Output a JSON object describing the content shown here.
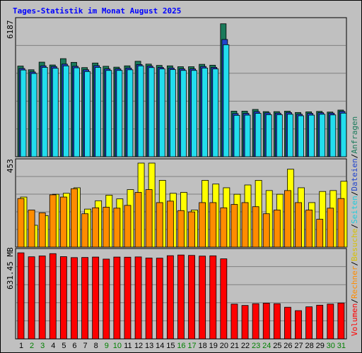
{
  "title": "Tages-Statistik im Monat August 2025",
  "colors": {
    "background": "#c0c0c0",
    "title": "#0000ff",
    "anfragen": "#1a7a5a",
    "dateien": "#2244cc",
    "seiten": "#22ddee",
    "besuche": "#ffff00",
    "rechner": "#ff8c00",
    "volumen": "#ff0000",
    "weekday": "#000000",
    "weekend": "#008000",
    "grid": "#808080"
  },
  "y_labels": {
    "top": "6187",
    "middle": "453",
    "bottom": "631.45 MB"
  },
  "legend_right": {
    "volumen": "Volumen",
    "rechner": "Rechner",
    "besuche": "Besuche",
    "seiten": "Seiten",
    "dateien": "Dateien",
    "anfragen": "Anfragen",
    "separator": "/"
  },
  "chart_data": [
    {
      "type": "bar",
      "panel": "top",
      "ylim": [
        0,
        6187
      ],
      "categories": [
        "1",
        "2",
        "3",
        "4",
        "5",
        "6",
        "7",
        "8",
        "9",
        "10",
        "11",
        "12",
        "13",
        "14",
        "15",
        "16",
        "17",
        "18",
        "19",
        "20",
        "21",
        "22",
        "23",
        "24",
        "25",
        "26",
        "27",
        "28",
        "29",
        "30",
        "31"
      ],
      "weekend": [
        2,
        3,
        9,
        10,
        16,
        17,
        23,
        24,
        30,
        31
      ],
      "series": [
        {
          "name": "Anfragen",
          "values": [
            4160,
            3990,
            4340,
            4210,
            4500,
            4330,
            4090,
            4300,
            4150,
            4110,
            4170,
            4380,
            4250,
            4190,
            4170,
            4130,
            4130,
            4240,
            4200,
            6100,
            2090,
            2090,
            2170,
            2070,
            2070,
            2090,
            2030,
            2060,
            2080,
            2050,
            2140
          ]
        },
        {
          "name": "Dateien",
          "values": [
            4050,
            3890,
            4170,
            4140,
            4250,
            4150,
            3990,
            4180,
            4030,
            4030,
            4070,
            4230,
            4160,
            4100,
            4070,
            4030,
            4030,
            4140,
            4100,
            5380,
            1980,
            1990,
            2070,
            2010,
            2000,
            2030,
            1950,
            1990,
            2020,
            2000,
            2080
          ]
        },
        {
          "name": "Seiten",
          "values": [
            3980,
            3820,
            4100,
            4060,
            4170,
            4080,
            3910,
            4100,
            3960,
            3960,
            3990,
            4170,
            4090,
            4030,
            4000,
            3960,
            3960,
            4070,
            4030,
            5140,
            1900,
            1910,
            1990,
            1930,
            1930,
            1950,
            1880,
            1910,
            1950,
            1920,
            2000
          ]
        }
      ]
    },
    {
      "type": "bar",
      "panel": "middle",
      "ylim": [
        0,
        453
      ],
      "categories": [
        "1",
        "2",
        "3",
        "4",
        "5",
        "6",
        "7",
        "8",
        "9",
        "10",
        "11",
        "12",
        "13",
        "14",
        "15",
        "16",
        "17",
        "18",
        "19",
        "20",
        "21",
        "22",
        "23",
        "24",
        "25",
        "26",
        "27",
        "28",
        "29",
        "30",
        "31"
      ],
      "series": [
        {
          "name": "Besuche",
          "values": [
            270,
            118,
            170,
            285,
            290,
            320,
            205,
            250,
            280,
            260,
            310,
            453,
            453,
            360,
            290,
            295,
            200,
            360,
            340,
            320,
            285,
            335,
            360,
            305,
            285,
            420,
            320,
            240,
            300,
            305,
            355
          ]
        },
        {
          "name": "Rechner",
          "values": [
            262,
            200,
            185,
            282,
            270,
            315,
            180,
            212,
            215,
            210,
            225,
            295,
            310,
            240,
            248,
            197,
            190,
            240,
            240,
            212,
            230,
            240,
            218,
            180,
            200,
            305,
            240,
            200,
            150,
            210,
            262
          ]
        }
      ]
    },
    {
      "type": "bar",
      "panel": "bottom",
      "ylim": [
        0,
        631.45
      ],
      "categories": [
        "1",
        "2",
        "3",
        "4",
        "5",
        "6",
        "7",
        "8",
        "9",
        "10",
        "11",
        "12",
        "13",
        "14",
        "15",
        "16",
        "17",
        "18",
        "19",
        "20",
        "21",
        "22",
        "23",
        "24",
        "25",
        "26",
        "27",
        "28",
        "29",
        "30",
        "31"
      ],
      "series": [
        {
          "name": "Volumen",
          "values": [
            631,
            602,
            608,
            625,
            603,
            596,
            597,
            600,
            585,
            600,
            599,
            601,
            593,
            592,
            610,
            615,
            612,
            607,
            609,
            587,
            255,
            245,
            258,
            262,
            258,
            232,
            207,
            235,
            247,
            255,
            263
          ]
        }
      ]
    }
  ]
}
